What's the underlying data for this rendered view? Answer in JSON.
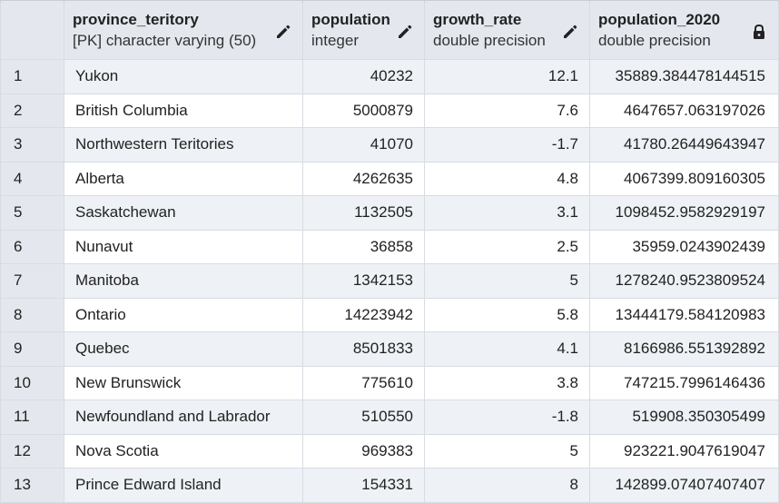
{
  "columns": [
    {
      "name": "province_teritory",
      "type": "[PK] character varying (50)",
      "icon": "pencil-icon"
    },
    {
      "name": "population",
      "type": "integer",
      "icon": "pencil-icon"
    },
    {
      "name": "growth_rate",
      "type": "double precision",
      "icon": "pencil-icon"
    },
    {
      "name": "population_2020",
      "type": "double precision",
      "icon": "lock-icon"
    }
  ],
  "rows": [
    {
      "num": "1",
      "province": "Yukon",
      "population": "40232",
      "growth_rate": "12.1",
      "population_2020": "35889.384478144515"
    },
    {
      "num": "2",
      "province": "British Columbia",
      "population": "5000879",
      "growth_rate": "7.6",
      "population_2020": "4647657.063197026"
    },
    {
      "num": "3",
      "province": "Northwestern Teritories",
      "population": "41070",
      "growth_rate": "-1.7",
      "population_2020": "41780.26449643947"
    },
    {
      "num": "4",
      "province": "Alberta",
      "population": "4262635",
      "growth_rate": "4.8",
      "population_2020": "4067399.809160305"
    },
    {
      "num": "5",
      "province": "Saskatchewan",
      "population": "1132505",
      "growth_rate": "3.1",
      "population_2020": "1098452.9582929197"
    },
    {
      "num": "6",
      "province": "Nunavut",
      "population": "36858",
      "growth_rate": "2.5",
      "population_2020": "35959.0243902439"
    },
    {
      "num": "7",
      "province": "Manitoba",
      "population": "1342153",
      "growth_rate": "5",
      "population_2020": "1278240.9523809524"
    },
    {
      "num": "8",
      "province": "Ontario",
      "population": "14223942",
      "growth_rate": "5.8",
      "population_2020": "13444179.584120983"
    },
    {
      "num": "9",
      "province": "Quebec",
      "population": "8501833",
      "growth_rate": "4.1",
      "population_2020": "8166986.551392892"
    },
    {
      "num": "10",
      "province": "New Brunswick",
      "population": "775610",
      "growth_rate": "3.8",
      "population_2020": "747215.7996146436"
    },
    {
      "num": "11",
      "province": "Newfoundland and Labrador",
      "population": "510550",
      "growth_rate": "-1.8",
      "population_2020": "519908.350305499"
    },
    {
      "num": "12",
      "province": "Nova Scotia",
      "population": "969383",
      "growth_rate": "5",
      "population_2020": "923221.9047619047"
    },
    {
      "num": "13",
      "province": "Prince Edward Island",
      "population": "154331",
      "growth_rate": "8",
      "population_2020": "142899.07407407407"
    }
  ]
}
